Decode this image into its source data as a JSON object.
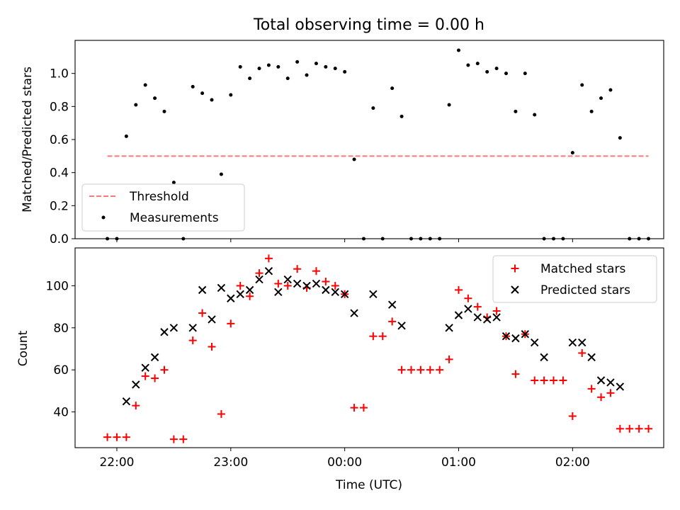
{
  "title": "Total observing time = 0.00 h",
  "chart_data": [
    {
      "type": "scatter",
      "ylabel": "Matched/Predicted stars",
      "ylim": [
        0,
        1.2
      ],
      "yticks": [
        "0.0",
        "0.2",
        "0.4",
        "0.6",
        "0.8",
        "1.0"
      ],
      "threshold": {
        "name": "Threshold",
        "value": 0.5,
        "x_start": "21:55",
        "x_end": "02:40",
        "color": "#f87a7a"
      },
      "series": [
        {
          "name": "Measurements",
          "color": "#000000",
          "x": [
            "21:55",
            "22:00",
            "22:05",
            "22:10",
            "22:15",
            "22:20",
            "22:25",
            "22:30",
            "22:35",
            "22:40",
            "22:45",
            "22:50",
            "22:55",
            "23:00",
            "23:05",
            "23:10",
            "23:15",
            "23:20",
            "23:25",
            "23:30",
            "23:35",
            "23:40",
            "23:45",
            "23:50",
            "23:55",
            "00:00",
            "00:05",
            "00:10",
            "00:15",
            "00:20",
            "00:25",
            "00:30",
            "00:35",
            "00:40",
            "00:45",
            "00:50",
            "00:55",
            "01:00",
            "01:05",
            "01:10",
            "01:15",
            "01:20",
            "01:25",
            "01:30",
            "01:35",
            "01:40",
            "01:45",
            "01:50",
            "01:55",
            "02:00",
            "02:05",
            "02:10",
            "02:15",
            "02:20",
            "02:25",
            "02:30",
            "02:35",
            "02:40"
          ],
          "y": [
            0.0,
            0.0,
            0.62,
            0.81,
            0.93,
            0.85,
            0.77,
            0.34,
            0.0,
            0.92,
            0.88,
            0.84,
            0.39,
            0.87,
            1.04,
            0.97,
            1.03,
            1.05,
            1.04,
            0.97,
            1.07,
            0.99,
            1.06,
            1.04,
            1.03,
            1.01,
            0.48,
            0.0,
            0.79,
            0.0,
            0.91,
            0.74,
            0.0,
            0.0,
            0.0,
            0.0,
            0.81,
            1.14,
            1.05,
            1.06,
            1.01,
            1.03,
            1.0,
            0.77,
            1.0,
            0.75,
            0.0,
            0.0,
            0.0,
            0.52,
            0.93,
            0.77,
            0.85,
            0.9,
            0.61,
            0.0,
            0.0,
            0.0
          ]
        }
      ],
      "legend": {
        "placement": "lower-left"
      }
    },
    {
      "type": "scatter",
      "xlabel": "Time (UTC)",
      "ylabel": "Count",
      "xlim": [
        "21:38",
        "02:48"
      ],
      "ylim": [
        23,
        118
      ],
      "yticks": [
        "40",
        "60",
        "80",
        "100"
      ],
      "xticks": [
        "22:00",
        "23:00",
        "00:00",
        "01:00",
        "02:00"
      ],
      "series": [
        {
          "name": "Matched stars",
          "color": "#ff0000",
          "marker": "plus",
          "x": [
            "21:55",
            "22:00",
            "22:05",
            "22:10",
            "22:15",
            "22:20",
            "22:25",
            "22:30",
            "22:35",
            "22:40",
            "22:45",
            "22:50",
            "22:55",
            "23:00",
            "23:05",
            "23:10",
            "23:15",
            "23:20",
            "23:25",
            "23:30",
            "23:35",
            "23:40",
            "23:45",
            "23:50",
            "23:55",
            "00:00",
            "00:05",
            "00:10",
            "00:15",
            "00:20",
            "00:25",
            "00:30",
            "00:35",
            "00:40",
            "00:45",
            "00:50",
            "00:55",
            "01:00",
            "01:05",
            "01:10",
            "01:15",
            "01:20",
            "01:25",
            "01:30",
            "01:35",
            "01:40",
            "01:45",
            "01:50",
            "01:55",
            "02:00",
            "02:05",
            "02:10",
            "02:15",
            "02:20",
            "02:25",
            "02:30",
            "02:35",
            "02:40"
          ],
          "y": [
            28,
            28,
            28,
            43,
            57,
            56,
            60,
            27,
            27,
            74,
            87,
            71,
            39,
            82,
            100,
            95,
            106,
            113,
            101,
            100,
            108,
            99,
            107,
            102,
            100,
            96,
            42,
            42,
            76,
            76,
            83,
            60,
            60,
            60,
            60,
            60,
            65,
            98,
            94,
            90,
            85,
            88,
            76,
            58,
            77,
            55,
            55,
            55,
            55,
            38,
            68,
            51,
            47,
            49,
            32,
            32,
            32,
            32
          ]
        },
        {
          "name": "Predicted stars",
          "color": "#000000",
          "marker": "x",
          "x": [
            "22:05",
            "22:10",
            "22:15",
            "22:20",
            "22:25",
            "22:30",
            "22:40",
            "22:45",
            "22:50",
            "22:55",
            "23:00",
            "23:05",
            "23:10",
            "23:15",
            "23:20",
            "23:25",
            "23:30",
            "23:35",
            "23:40",
            "23:45",
            "23:50",
            "23:55",
            "00:00",
            "00:05",
            "00:15",
            "00:25",
            "00:30",
            "00:55",
            "01:00",
            "01:05",
            "01:10",
            "01:15",
            "01:20",
            "01:25",
            "01:30",
            "01:35",
            "01:40",
            "01:45",
            "02:00",
            "02:05",
            "02:10",
            "02:15",
            "02:20",
            "02:25"
          ],
          "y": [
            45,
            53,
            61,
            66,
            78,
            80,
            80,
            98,
            84,
            99,
            94,
            96,
            98,
            103,
            107,
            97,
            103,
            101,
            100,
            101,
            98,
            97,
            96,
            87,
            96,
            91,
            81,
            80,
            86,
            89,
            85,
            84,
            85,
            76,
            75,
            77,
            73,
            66,
            73,
            73,
            66,
            55,
            54,
            52
          ]
        }
      ],
      "legend": {
        "placement": "upper-right"
      }
    }
  ]
}
